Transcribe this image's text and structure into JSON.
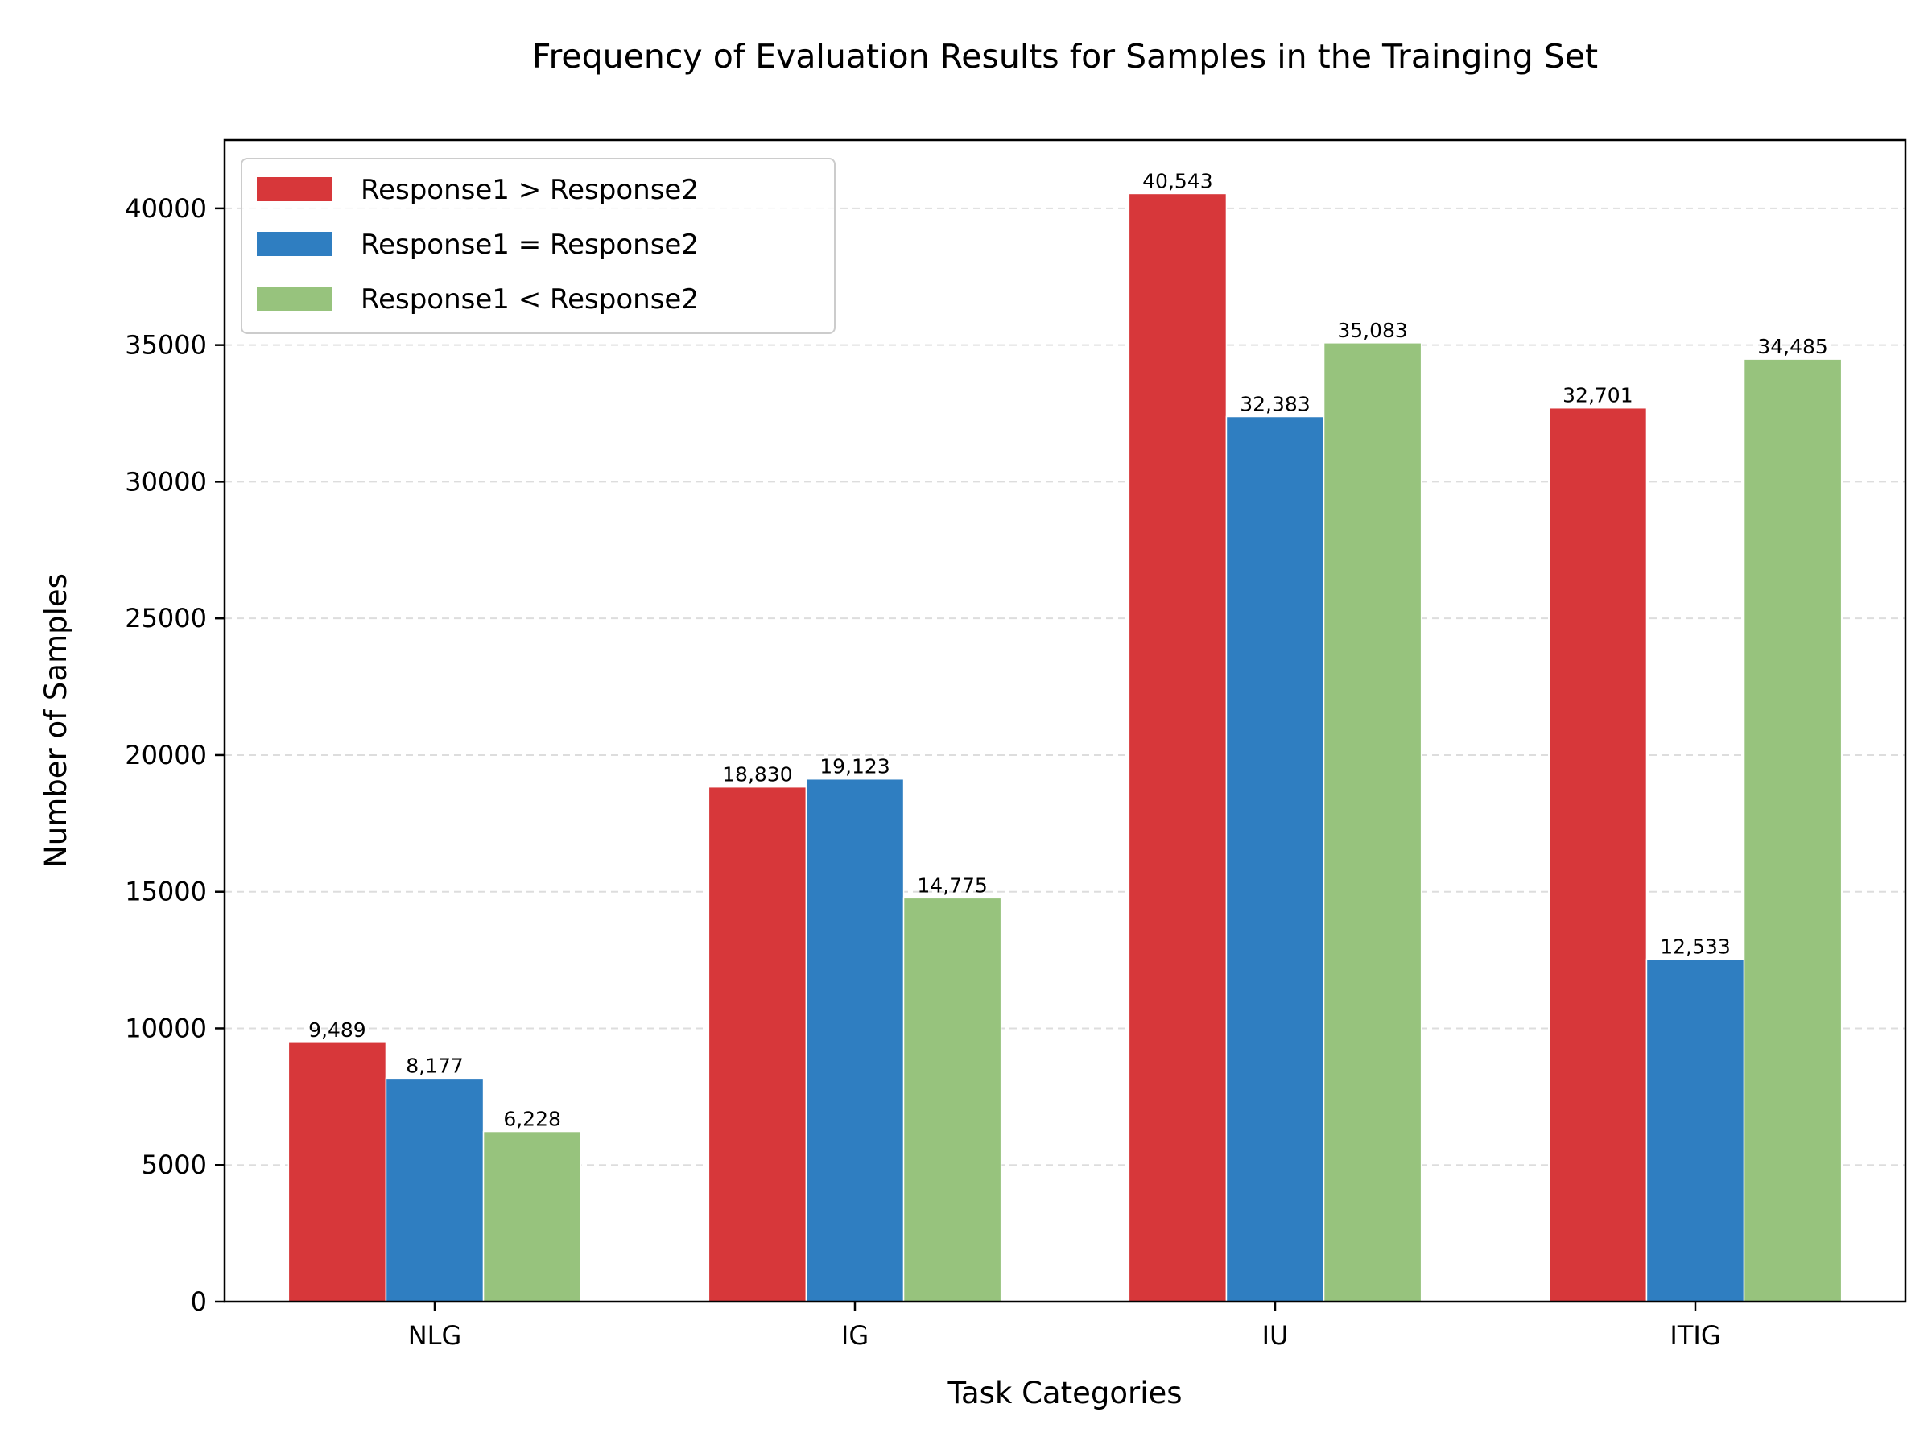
{
  "chart_data": {
    "type": "bar",
    "title": "Frequency of Evaluation Results for Samples in the Trainging Set",
    "xlabel": "Task Categories",
    "ylabel": "Number of Samples",
    "categories": [
      "NLG",
      "IG",
      "IU",
      "ITIG"
    ],
    "series": [
      {
        "name": "Response1 > Response2",
        "color": "#d7373a",
        "values": [
          9489,
          18830,
          40543,
          32701
        ],
        "labels": [
          "9,489",
          "18,830",
          "40,543",
          "32,701"
        ]
      },
      {
        "name": "Response1 = Response2",
        "color": "#2f7ec1",
        "values": [
          8177,
          19123,
          32383,
          12533
        ],
        "labels": [
          "8,177",
          "19,123",
          "32,383",
          "12,533"
        ]
      },
      {
        "name": "Response1 < Response2",
        "color": "#97c37d",
        "values": [
          6228,
          14775,
          35083,
          34485
        ],
        "labels": [
          "6,228",
          "14,775",
          "35,083",
          "34,485"
        ]
      }
    ],
    "ylim": [
      0,
      42500
    ],
    "yticks": [
      0,
      5000,
      10000,
      15000,
      20000,
      25000,
      30000,
      35000,
      40000
    ],
    "ytick_labels": [
      "0",
      "5000",
      "10000",
      "15000",
      "20000",
      "25000",
      "30000",
      "35000",
      "40000"
    ],
    "grid": "horizontal dashed",
    "legend_position": "top-left"
  }
}
